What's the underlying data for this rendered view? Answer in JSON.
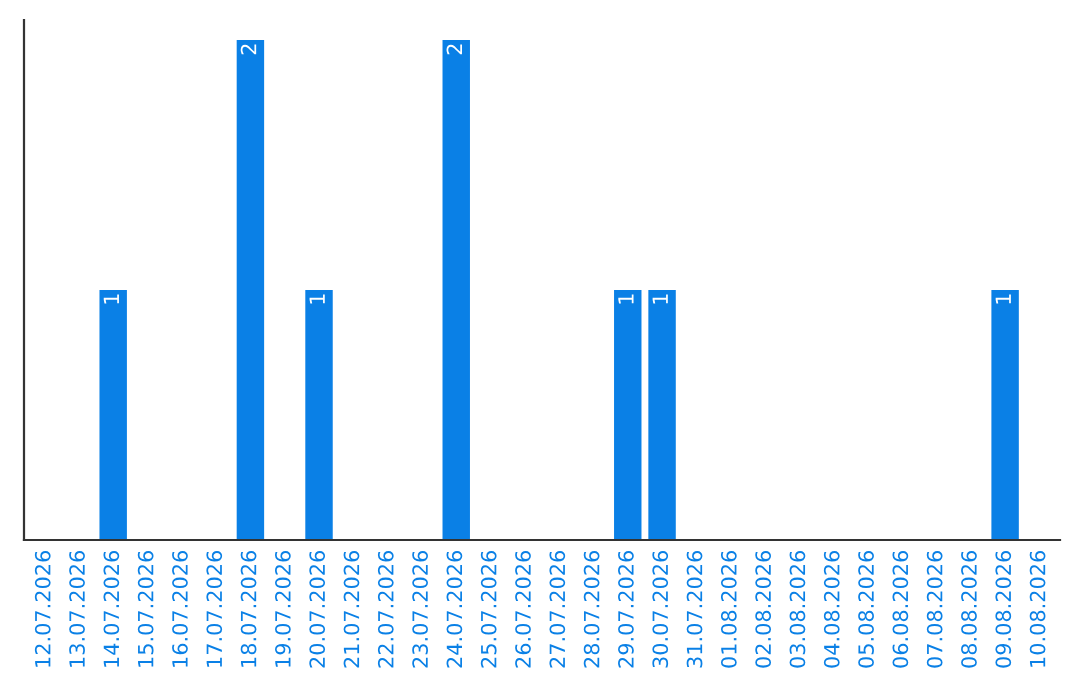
{
  "chart_data": {
    "type": "bar",
    "categories": [
      "12.07.2026",
      "13.07.2026",
      "14.07.2026",
      "15.07.2026",
      "16.07.2026",
      "17.07.2026",
      "18.07.2026",
      "19.07.2026",
      "20.07.2026",
      "21.07.2026",
      "22.07.2026",
      "23.07.2026",
      "24.07.2026",
      "25.07.2026",
      "26.07.2026",
      "27.07.2026",
      "28.07.2026",
      "29.07.2026",
      "30.07.2026",
      "31.07.2026",
      "01.08.2026",
      "02.08.2026",
      "03.08.2026",
      "04.08.2026",
      "05.08.2026",
      "06.08.2026",
      "07.08.2026",
      "08.08.2026",
      "09.08.2026",
      "10.08.2026"
    ],
    "values": [
      null,
      null,
      1,
      null,
      null,
      null,
      2,
      null,
      1,
      null,
      null,
      null,
      2,
      null,
      null,
      null,
      null,
      1,
      1,
      null,
      null,
      null,
      null,
      null,
      null,
      null,
      null,
      null,
      1,
      null
    ],
    "data_labels": true,
    "color": "#0a80e6",
    "tick_labels": "x",
    "grid": false,
    "legend": false
  }
}
